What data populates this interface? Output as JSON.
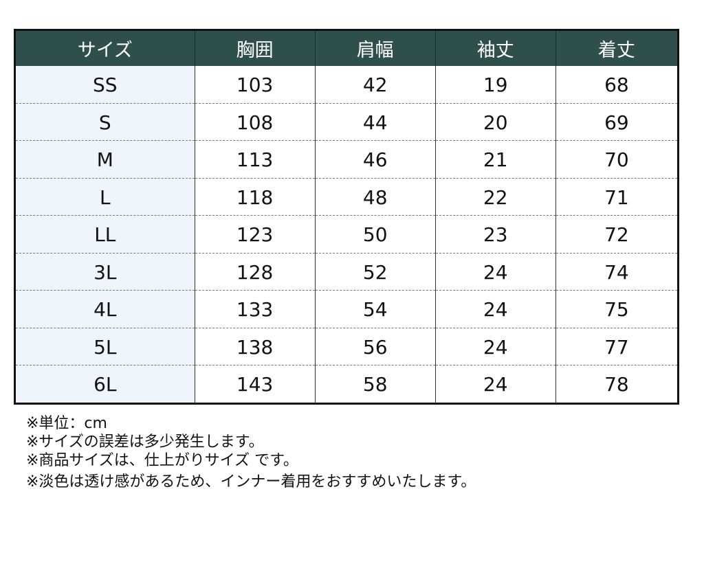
{
  "table": {
    "headers": [
      "サイズ",
      "胸囲",
      "肩幅",
      "袖丈",
      "着丈"
    ],
    "rows": [
      [
        "SS",
        "103",
        "42",
        "19",
        "68"
      ],
      [
        "S",
        "108",
        "44",
        "20",
        "69"
      ],
      [
        "M",
        "113",
        "46",
        "21",
        "70"
      ],
      [
        "L",
        "118",
        "48",
        "22",
        "71"
      ],
      [
        "LL",
        "123",
        "50",
        "23",
        "72"
      ],
      [
        "3L",
        "128",
        "52",
        "24",
        "74"
      ],
      [
        "4L",
        "133",
        "54",
        "24",
        "75"
      ],
      [
        "5L",
        "138",
        "56",
        "24",
        "77"
      ],
      [
        "6L",
        "143",
        "58",
        "24",
        "78"
      ]
    ],
    "header_color": "#2f4f4c",
    "size_column_color": "#eef5fc"
  },
  "notes": [
    "※単位：cm",
    "※サイズの誤差は多少発生します。",
    "※商品サイズは、仕上がりサイズ です。",
    "※淡色は透け感があるため、インナー着用をおすすめいたします。"
  ]
}
